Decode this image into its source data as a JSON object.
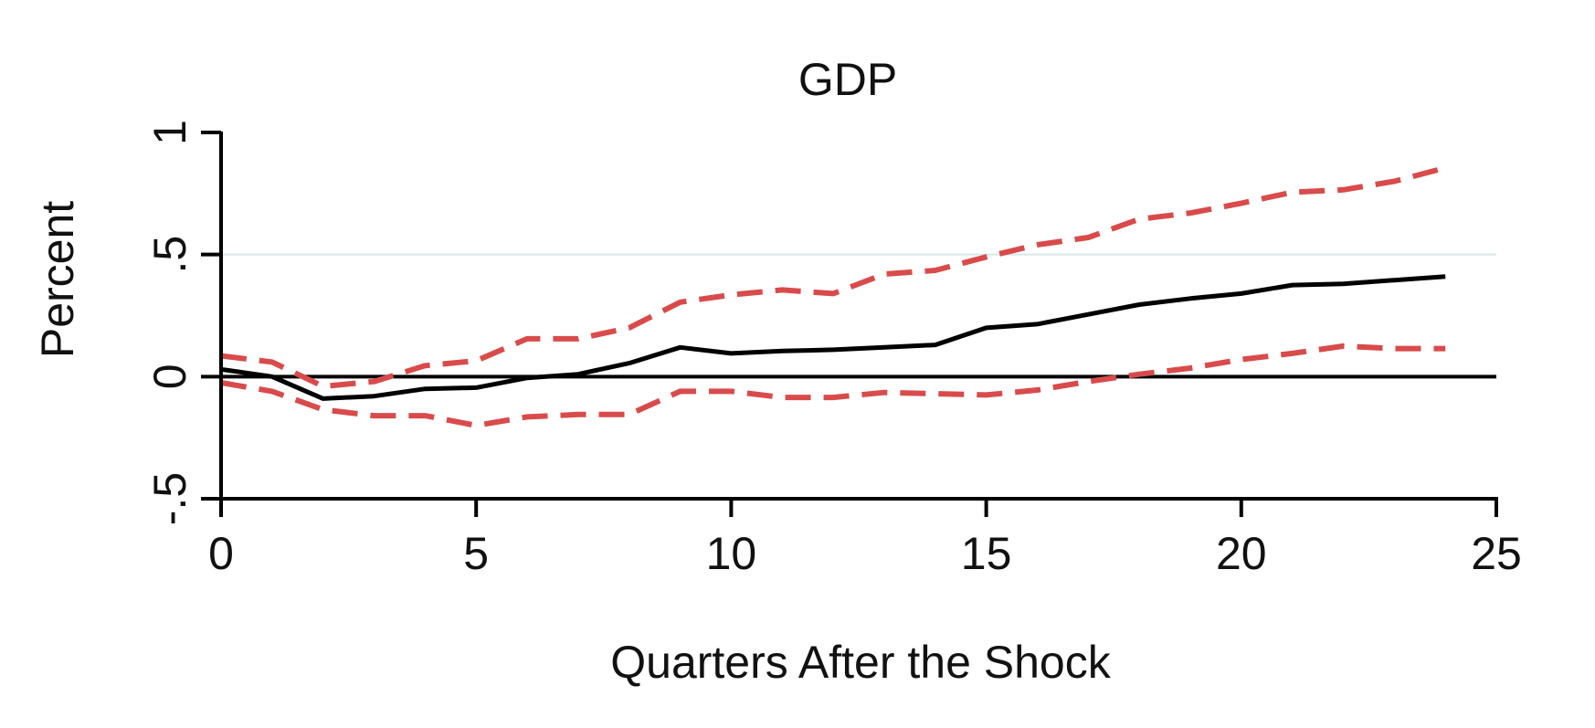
{
  "chart_data": {
    "type": "line",
    "title": "GDP",
    "xlabel": "Quarters After the Shock",
    "ylabel": "Percent",
    "xlim": [
      0,
      25
    ],
    "ylim": [
      -0.5,
      1
    ],
    "xticks": [
      {
        "value": 0,
        "label": "0"
      },
      {
        "value": 5,
        "label": "5"
      },
      {
        "value": 10,
        "label": "10"
      },
      {
        "value": 15,
        "label": "15"
      },
      {
        "value": 20,
        "label": "20"
      },
      {
        "value": 25,
        "label": "25"
      }
    ],
    "yticks": [
      {
        "value": -0.5,
        "label": "-.5"
      },
      {
        "value": 0,
        "label": "0"
      },
      {
        "value": 0.5,
        "label": ".5"
      },
      {
        "value": 1,
        "label": "1"
      }
    ],
    "gridlines_y": [
      0.5
    ],
    "reference_line_y": 0,
    "legend": "none",
    "x": [
      0,
      1,
      2,
      3,
      4,
      5,
      6,
      7,
      8,
      9,
      10,
      11,
      12,
      13,
      14,
      15,
      16,
      17,
      18,
      19,
      20,
      21,
      22,
      23,
      24
    ],
    "series": [
      {
        "role": "estimate",
        "color": "#000000",
        "dash": "solid",
        "values": [
          0.03,
          0.0,
          -0.09,
          -0.08,
          -0.05,
          -0.045,
          -0.005,
          0.01,
          0.055,
          0.12,
          0.095,
          0.105,
          0.11,
          0.12,
          0.13,
          0.2,
          0.215,
          0.255,
          0.295,
          0.32,
          0.34,
          0.375,
          0.38,
          0.395,
          0.41
        ]
      },
      {
        "role": "upper-band",
        "color": "#D94B4B",
        "dash": "dashed",
        "values": [
          0.085,
          0.06,
          -0.04,
          -0.02,
          0.045,
          0.065,
          0.155,
          0.155,
          0.2,
          0.305,
          0.335,
          0.355,
          0.34,
          0.42,
          0.435,
          0.49,
          0.54,
          0.57,
          0.645,
          0.67,
          0.71,
          0.755,
          0.765,
          0.8,
          0.855
        ]
      },
      {
        "role": "lower-band",
        "color": "#D94B4B",
        "dash": "dashed",
        "values": [
          -0.025,
          -0.06,
          -0.135,
          -0.16,
          -0.16,
          -0.2,
          -0.165,
          -0.155,
          -0.155,
          -0.06,
          -0.06,
          -0.085,
          -0.085,
          -0.065,
          -0.07,
          -0.075,
          -0.055,
          -0.02,
          0.01,
          0.035,
          0.07,
          0.095,
          0.125,
          0.115,
          0.115
        ]
      }
    ]
  }
}
